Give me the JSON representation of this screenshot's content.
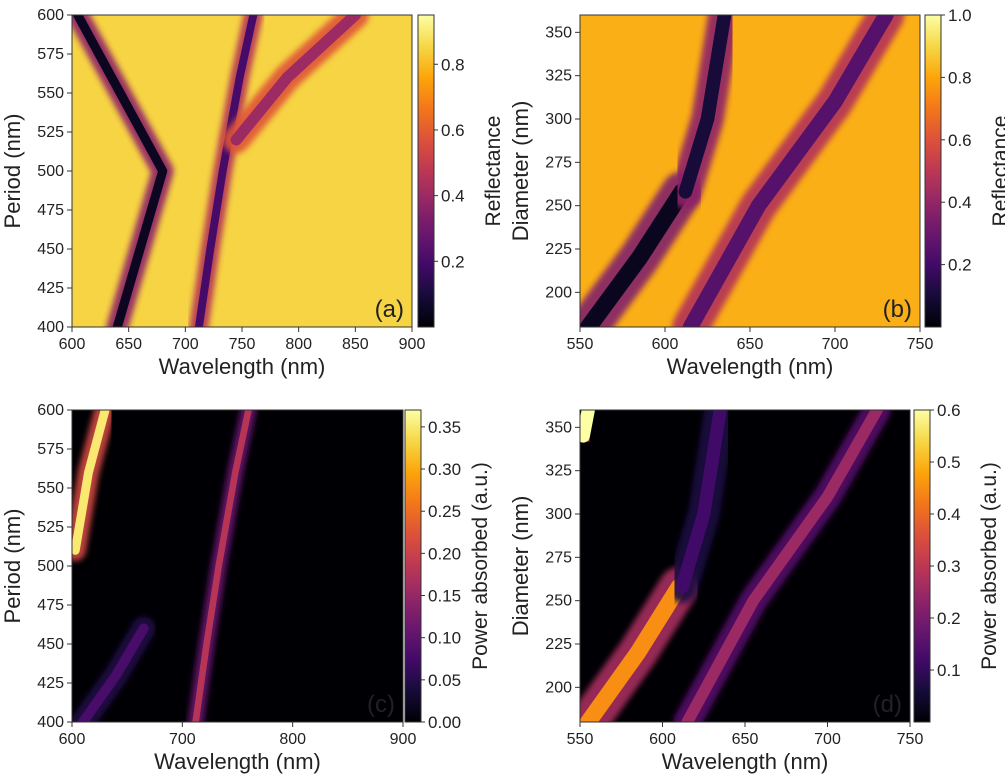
{
  "chart_data": [
    {
      "type": "heatmap",
      "panel_label": "(a)",
      "xlabel": "Wavelength (nm)",
      "ylabel": "Period (nm)",
      "colorbar_label": "Reflectance",
      "xlim": [
        600,
        900
      ],
      "ylim": [
        400,
        600
      ],
      "xticks": [
        600,
        650,
        700,
        750,
        800,
        850,
        900
      ],
      "yticks": [
        400,
        425,
        450,
        475,
        500,
        525,
        550,
        575,
        600
      ],
      "crange": [
        0.0,
        0.95
      ],
      "cticks": [
        0.2,
        0.4,
        0.6,
        0.8
      ],
      "colormap": "inferno",
      "background_value": 0.85,
      "features": [
        {
          "note": "first-order dip",
          "points": [
            [
              640,
              400
            ],
            [
              660,
              450
            ],
            [
              680,
              500
            ],
            [
              635,
              560
            ],
            [
              605,
              600
            ]
          ],
          "value": 0.05,
          "width_nm": 8
        },
        {
          "note": "main diagonal dip",
          "points": [
            [
              712,
              400
            ],
            [
              722,
              450
            ],
            [
              733,
              500
            ],
            [
              748,
              560
            ],
            [
              760,
              600
            ]
          ],
          "value": 0.2,
          "width_nm": 7
        },
        {
          "note": "upper dip",
          "points": [
            [
              745,
              520
            ],
            [
              790,
              560
            ],
            [
              850,
              600
            ]
          ],
          "value": 0.4,
          "width_nm": 10
        }
      ]
    },
    {
      "type": "heatmap",
      "panel_label": "(b)",
      "xlabel": "Wavelength (nm)",
      "ylabel": "Diameter (nm)",
      "colorbar_label": "Reflectance",
      "xlim": [
        550,
        750
      ],
      "ylim": [
        180,
        360
      ],
      "xticks": [
        550,
        600,
        650,
        700,
        750
      ],
      "yticks": [
        200,
        225,
        250,
        275,
        300,
        325,
        350
      ],
      "crange": [
        0.0,
        1.0
      ],
      "cticks": [
        0.2,
        0.4,
        0.6,
        0.8,
        1.0
      ],
      "colormap": "inferno",
      "background_value": 0.82,
      "features": [
        {
          "note": "lower-left dip",
          "points": [
            [
              555,
              180
            ],
            [
              585,
              220
            ],
            [
              610,
              258
            ]
          ],
          "value": 0.05,
          "width_nm": 10
        },
        {
          "note": "vertical dip",
          "points": [
            [
              612,
              258
            ],
            [
              625,
              300
            ],
            [
              635,
              360
            ]
          ],
          "value": 0.1,
          "width_nm": 8
        },
        {
          "note": "rising dip",
          "points": [
            [
              615,
              180
            ],
            [
              655,
              250
            ],
            [
              700,
              310
            ],
            [
              730,
              360
            ]
          ],
          "value": 0.25,
          "width_nm": 9
        }
      ]
    },
    {
      "type": "heatmap",
      "panel_label": "(c)",
      "xlabel": "Wavelength (nm)",
      "ylabel": "Period (nm)",
      "colorbar_label": "Power absorbed (a.u.)",
      "xlim": [
        600,
        900
      ],
      "ylim": [
        400,
        600
      ],
      "xticks": [
        600,
        700,
        800,
        900
      ],
      "yticks": [
        400,
        425,
        450,
        475,
        500,
        525,
        550,
        575,
        600
      ],
      "crange": [
        0.0,
        0.37
      ],
      "cticks": [
        0.0,
        0.05,
        0.1,
        0.15,
        0.2,
        0.25,
        0.3,
        0.35
      ],
      "colormap": "inferno",
      "background_value": 0.0,
      "features": [
        {
          "note": "bright band top-left",
          "points": [
            [
              603,
              510
            ],
            [
              615,
              560
            ],
            [
              630,
              600
            ]
          ],
          "value": 0.35,
          "width_nm": 8
        },
        {
          "note": "lower-left band",
          "points": [
            [
              610,
              400
            ],
            [
              640,
              430
            ],
            [
              665,
              460
            ]
          ],
          "value": 0.08,
          "width_nm": 9
        },
        {
          "note": "main diagonal band",
          "points": [
            [
              712,
              400
            ],
            [
              722,
              450
            ],
            [
              733,
              500
            ],
            [
              748,
              560
            ],
            [
              760,
              600
            ]
          ],
          "value": 0.18,
          "width_nm": 6
        }
      ]
    },
    {
      "type": "heatmap",
      "panel_label": "(d)",
      "xlabel": "Wavelength (nm)",
      "ylabel": "Diameter (nm)",
      "colorbar_label": "Power absorbed (a.u.)",
      "xlim": [
        550,
        750
      ],
      "ylim": [
        180,
        360
      ],
      "xticks": [
        550,
        600,
        650,
        700,
        750
      ],
      "yticks": [
        200,
        225,
        250,
        275,
        300,
        325,
        350
      ],
      "crange": [
        0.0,
        0.6
      ],
      "cticks": [
        0.1,
        0.2,
        0.3,
        0.4,
        0.5,
        0.6
      ],
      "colormap": "inferno",
      "background_value": 0.0,
      "features": [
        {
          "note": "bright band lower-left",
          "points": [
            [
              555,
              180
            ],
            [
              585,
              220
            ],
            [
              610,
              258
            ]
          ],
          "value": 0.45,
          "width_nm": 10
        },
        {
          "note": "faint vertical band",
          "points": [
            [
              612,
              258
            ],
            [
              625,
              300
            ],
            [
              635,
              360
            ]
          ],
          "value": 0.12,
          "width_nm": 8
        },
        {
          "note": "rising band",
          "points": [
            [
              615,
              180
            ],
            [
              655,
              250
            ],
            [
              700,
              310
            ],
            [
              730,
              360
            ]
          ],
          "value": 0.25,
          "width_nm": 7
        },
        {
          "note": "top-left hot corner",
          "points": [
            [
              552,
              345
            ],
            [
              555,
              360
            ]
          ],
          "value": 0.6,
          "width_nm": 8
        }
      ]
    }
  ]
}
